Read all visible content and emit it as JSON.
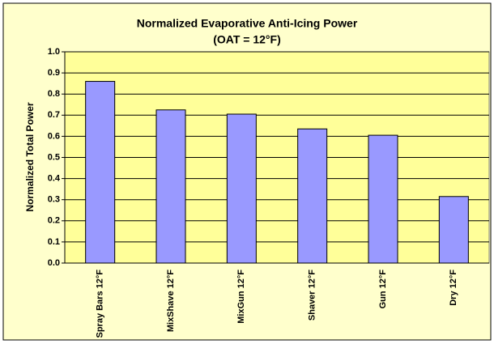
{
  "chart_data": {
    "type": "bar",
    "title": "Normalized Evaporative Anti-Icing Power",
    "subtitle": "(OAT = 12°F)",
    "y_label": "Normalized Total Power",
    "categories": [
      "Spray Bars 12°F",
      "MixShave 12°F",
      "MixGun 12°F",
      "Shaver 12°F",
      "Gun 12°F",
      "Dry 12°F"
    ],
    "values": [
      0.86,
      0.725,
      0.705,
      0.635,
      0.605,
      0.315
    ],
    "color": "#9999ff",
    "ylim": [
      0,
      1
    ],
    "yticks": [
      {
        "value": 0,
        "label": "0.0"
      },
      0.1,
      0.2,
      0.3,
      0.4,
      0.5,
      0.6,
      0.7,
      0.8,
      0.9,
      {
        "value": 1,
        "label": "1.0"
      }
    ],
    "grid": true
  }
}
